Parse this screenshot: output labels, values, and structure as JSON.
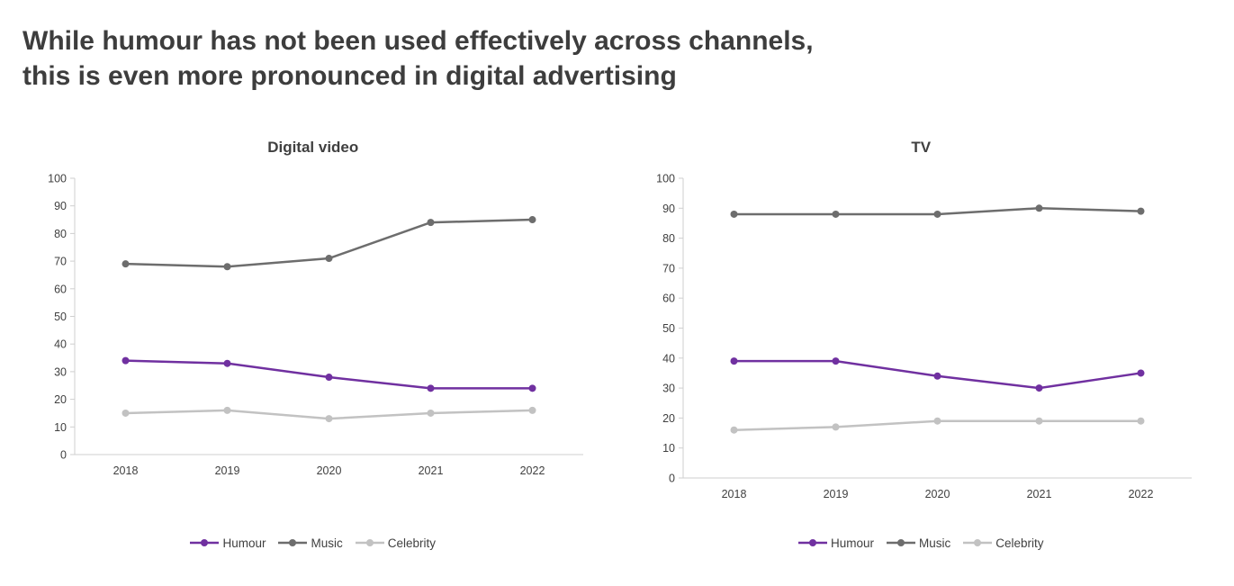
{
  "page": {
    "title_line1": "While humour has not been used effectively across channels,",
    "title_line2": "this is even more pronounced in digital advertising"
  },
  "colors": {
    "humour": "#7030a0",
    "music": "#6d6d6d",
    "celebrity": "#c2c2c2",
    "axis": "#cfcfcf",
    "text": "#404040"
  },
  "chart_data": [
    {
      "type": "line",
      "title": "Digital video",
      "categories": [
        "2018",
        "2019",
        "2020",
        "2021",
        "2022"
      ],
      "series": [
        {
          "name": "Humour",
          "color_key": "humour",
          "values": [
            34,
            33,
            28,
            24,
            24
          ]
        },
        {
          "name": "Music",
          "color_key": "music",
          "values": [
            69,
            68,
            71,
            84,
            85
          ]
        },
        {
          "name": "Celebrity",
          "color_key": "celebrity",
          "values": [
            15,
            16,
            13,
            15,
            16
          ]
        }
      ],
      "ylim": [
        0,
        100
      ],
      "ytick_step": 10,
      "grid": "off",
      "legend_position": "bottom"
    },
    {
      "type": "line",
      "title": "TV",
      "categories": [
        "2018",
        "2019",
        "2020",
        "2021",
        "2022"
      ],
      "series": [
        {
          "name": "Humour",
          "color_key": "humour",
          "values": [
            39,
            39,
            34,
            30,
            35
          ]
        },
        {
          "name": "Music",
          "color_key": "music",
          "values": [
            88,
            88,
            88,
            90,
            89
          ]
        },
        {
          "name": "Celebrity",
          "color_key": "celebrity",
          "values": [
            16,
            17,
            19,
            19,
            19
          ]
        }
      ],
      "ylim": [
        0,
        100
      ],
      "ytick_step": 10,
      "grid": "off",
      "legend_position": "bottom"
    }
  ]
}
